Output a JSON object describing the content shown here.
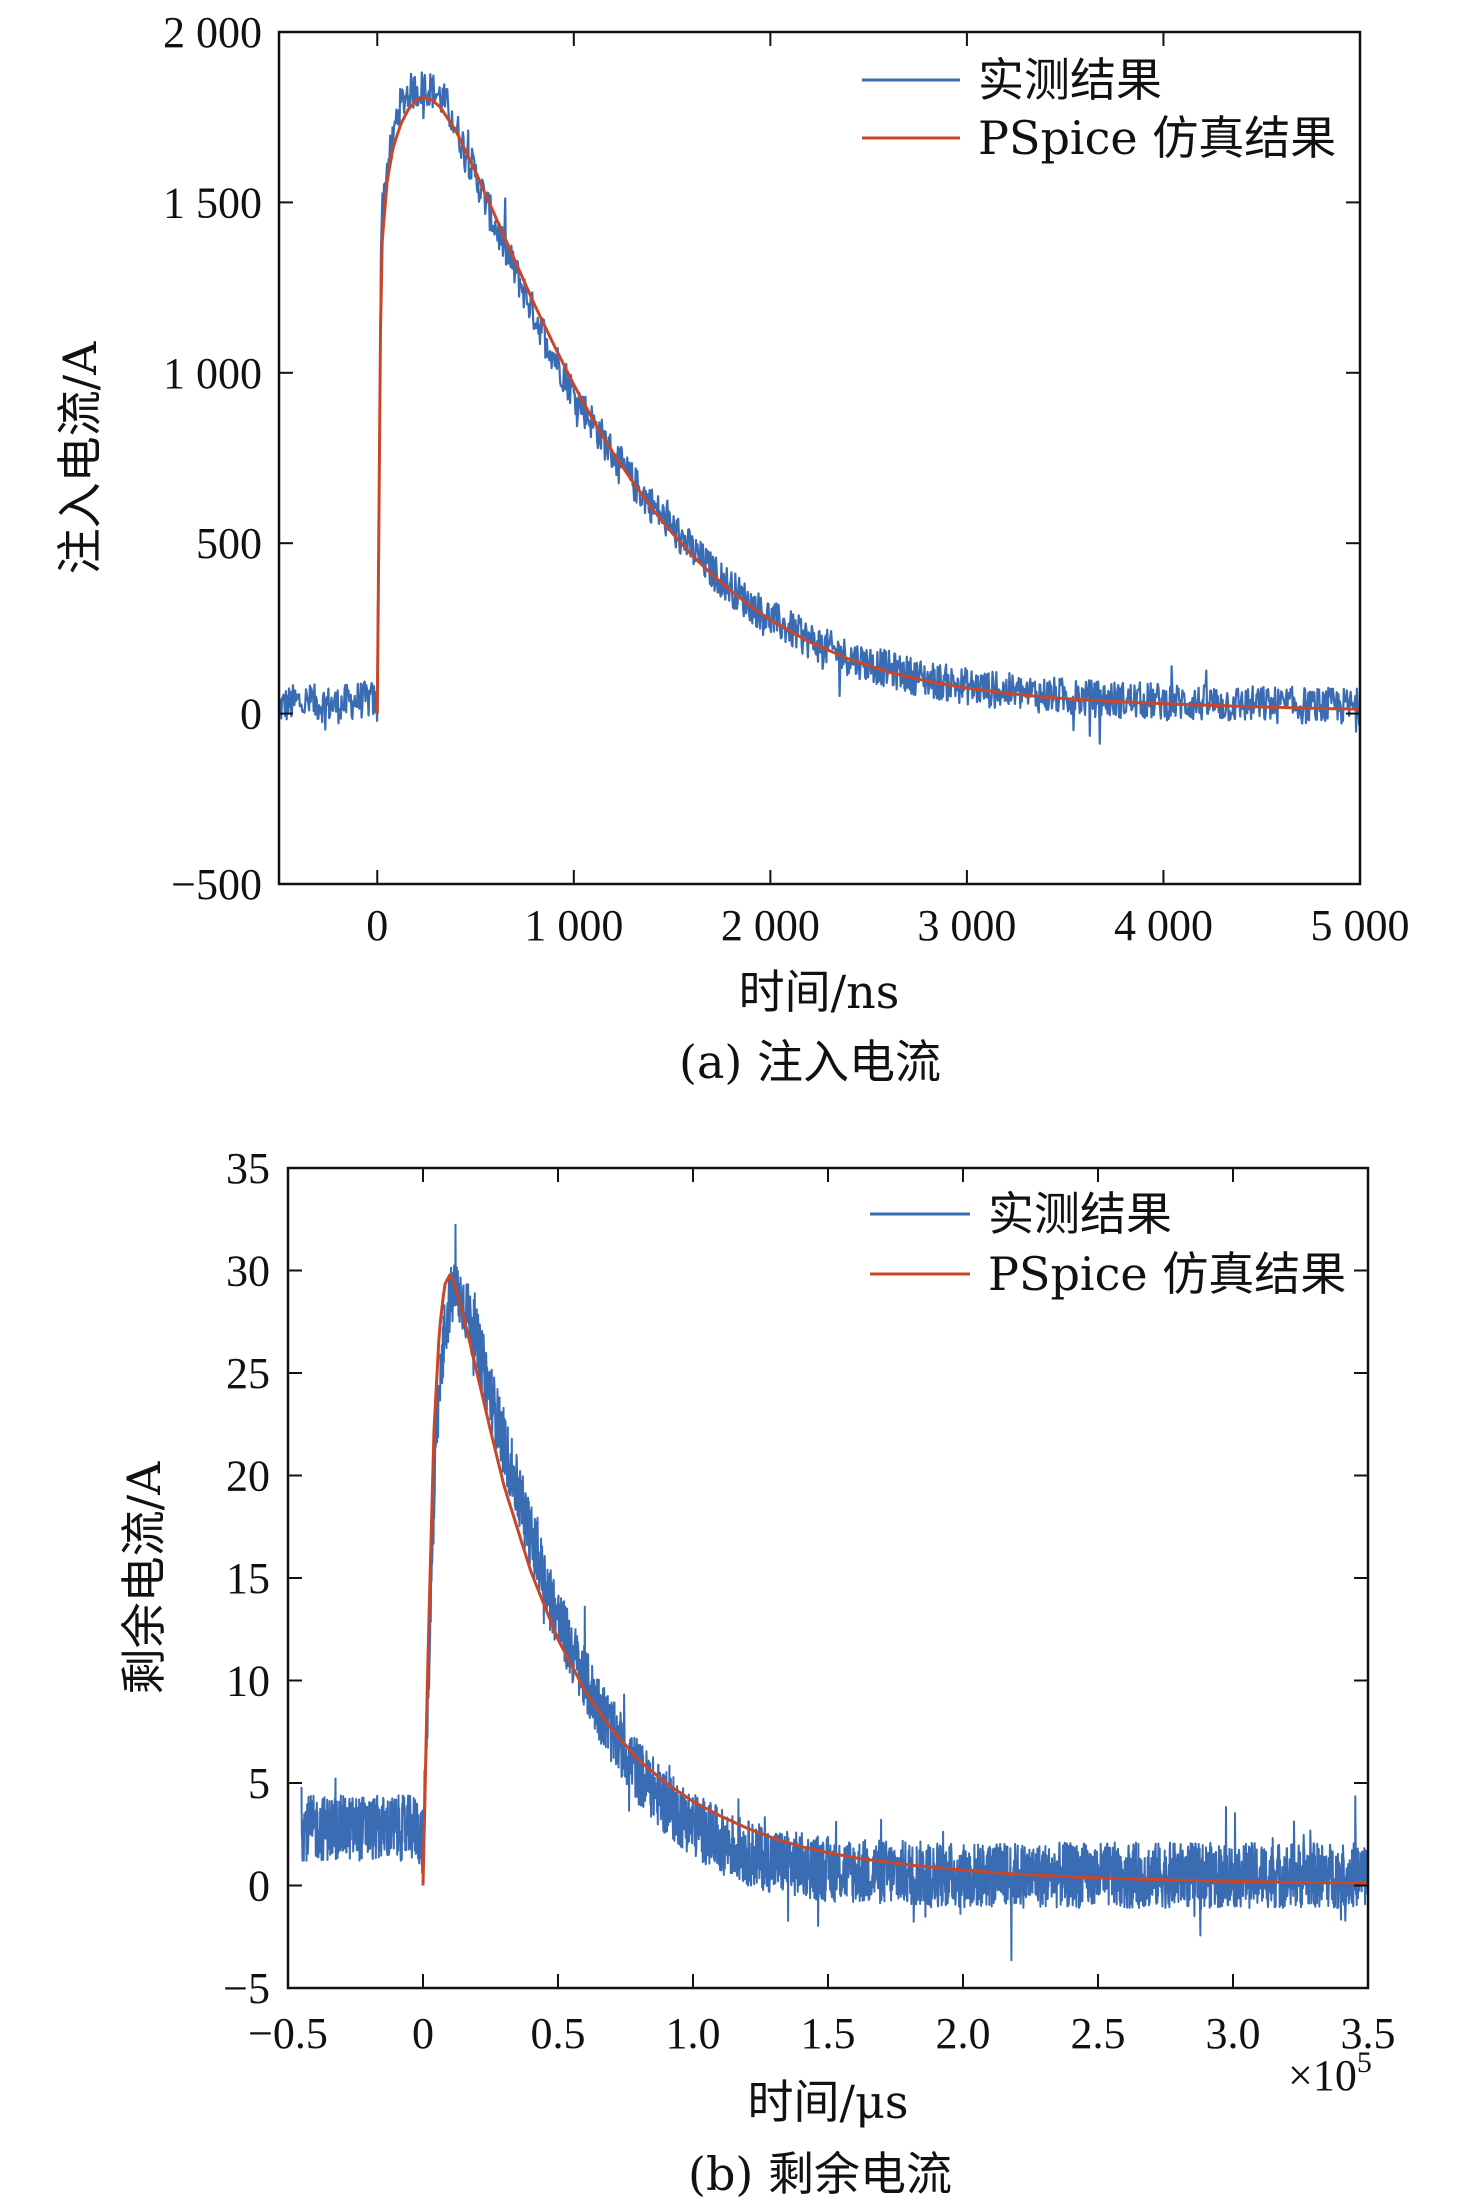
{
  "chart_data": [
    {
      "type": "line",
      "caption": "(a) 注入电流",
      "xlabel": "时间/ns",
      "ylabel": "注入电流/A",
      "xlim": [
        -500,
        5000
      ],
      "ylim": [
        -500,
        2000
      ],
      "x_ticks": [
        0,
        1000,
        2000,
        3000,
        4000,
        5000
      ],
      "x_tick_labels": [
        "0",
        "1 000",
        "2 000",
        "3 000",
        "4 000",
        "5 000"
      ],
      "y_ticks": [
        -500,
        0,
        500,
        1000,
        1500,
        2000
      ],
      "y_tick_labels": [
        "−500",
        "0",
        "500",
        "1 000",
        "1 500",
        "2 000"
      ],
      "grid": false,
      "legend_position": "top-right",
      "series": [
        {
          "name": "实测结果",
          "color": "#3a6cb4",
          "x": [
            -500,
            -400,
            -300,
            -200,
            -100,
            -20,
            0,
            20,
            50,
            80,
            100,
            150,
            200,
            250,
            300,
            350,
            400,
            500,
            600,
            700,
            800,
            900,
            1000,
            1100,
            1200,
            1300,
            1400,
            1500,
            1600,
            1700,
            1800,
            1900,
            2000,
            2200,
            2400,
            2600,
            2800,
            3000,
            3200,
            3400,
            3600,
            3800,
            4000,
            4200,
            4400,
            4600,
            4800,
            5000
          ],
          "values": [
            20,
            35,
            30,
            25,
            40,
            40,
            10,
            1450,
            1600,
            1680,
            1760,
            1820,
            1830,
            1840,
            1820,
            1790,
            1720,
            1580,
            1430,
            1300,
            1170,
            1050,
            940,
            850,
            760,
            680,
            610,
            545,
            480,
            420,
            370,
            320,
            280,
            215,
            165,
            130,
            100,
            80,
            65,
            55,
            45,
            40,
            35,
            30,
            28,
            25,
            22,
            20
          ],
          "noise_amplitude": 55
        },
        {
          "name": "PSpice 仿真结果",
          "color": "#c8472b",
          "x": [
            0,
            20,
            50,
            80,
            120,
            160,
            200,
            240,
            280,
            320,
            400,
            500,
            600,
            700,
            800,
            900,
            1000,
            1100,
            1200,
            1300,
            1400,
            1500,
            1600,
            1700,
            1800,
            1900,
            2000,
            2200,
            2400,
            2600,
            2800,
            3000,
            3200,
            3400,
            3600,
            3800,
            4000,
            4200,
            4400,
            4600,
            4800,
            5000
          ],
          "values": [
            0,
            1350,
            1560,
            1660,
            1730,
            1775,
            1800,
            1808,
            1800,
            1780,
            1710,
            1590,
            1460,
            1330,
            1200,
            1080,
            965,
            860,
            765,
            680,
            600,
            530,
            465,
            410,
            360,
            315,
            275,
            210,
            160,
            122,
            95,
            75,
            60,
            48,
            40,
            34,
            29,
            25,
            21,
            18,
            15,
            13
          ]
        }
      ]
    },
    {
      "type": "line",
      "caption": "(b) 剩余电流",
      "xlabel": "时间/μs",
      "ylabel": "剩余电流/A",
      "xlim": [
        -0.5,
        3.5
      ],
      "ylim": [
        -5,
        35
      ],
      "x_ticks": [
        -0.5,
        0,
        0.5,
        1.0,
        1.5,
        2.0,
        2.5,
        3.0,
        3.5
      ],
      "x_tick_labels": [
        "−0.5",
        "0",
        "0.5",
        "1.0",
        "1.5",
        "2.0",
        "2.5",
        "3.0",
        "3.5"
      ],
      "x_multiplier": "×10",
      "x_multiplier_exponent": "5",
      "y_ticks": [
        -5,
        0,
        5,
        10,
        15,
        20,
        25,
        30,
        35
      ],
      "y_tick_labels": [
        "−5",
        "0",
        "5",
        "10",
        "15",
        "20",
        "25",
        "30",
        "35"
      ],
      "grid": false,
      "legend_position": "top-right",
      "series": [
        {
          "name": "实测结果",
          "color": "#3a6cb4",
          "x": [
            -0.45,
            -0.3,
            -0.15,
            -0.02,
            0,
            0.02,
            0.05,
            0.08,
            0.1,
            0.12,
            0.15,
            0.2,
            0.25,
            0.3,
            0.4,
            0.5,
            0.6,
            0.7,
            0.8,
            0.9,
            1.0,
            1.1,
            1.2,
            1.3,
            1.4,
            1.5,
            1.6,
            1.8,
            2.0,
            2.2,
            2.4,
            2.6,
            2.8,
            3.0,
            3.2,
            3.5
          ],
          "values": [
            2.8,
            2.8,
            2.8,
            2.8,
            2.0,
            10.0,
            22.0,
            27.0,
            28.5,
            29.0,
            28.5,
            26.5,
            24.0,
            21.5,
            17.0,
            13.0,
            10.0,
            7.5,
            5.5,
            4.0,
            3.0,
            2.2,
            1.6,
            1.2,
            1.0,
            0.8,
            0.7,
            0.6,
            0.5,
            0.5,
            0.5,
            0.5,
            0.5,
            0.5,
            0.5,
            0.5
          ],
          "noise_amplitude": 1.6
        },
        {
          "name": "PSpice 仿真结果",
          "color": "#c8472b",
          "x": [
            0,
            0.02,
            0.04,
            0.06,
            0.08,
            0.1,
            0.12,
            0.15,
            0.2,
            0.25,
            0.3,
            0.4,
            0.5,
            0.6,
            0.7,
            0.8,
            0.9,
            1.0,
            1.1,
            1.2,
            1.3,
            1.4,
            1.5,
            1.6,
            1.8,
            2.0,
            2.2,
            2.4,
            2.6,
            2.8,
            3.0,
            3.2,
            3.5
          ],
          "values": [
            0,
            12.0,
            22.0,
            27.0,
            29.3,
            29.8,
            29.2,
            27.8,
            25.0,
            22.2,
            19.5,
            15.3,
            12.0,
            9.5,
            7.6,
            6.1,
            5.0,
            4.1,
            3.4,
            2.8,
            2.3,
            1.9,
            1.6,
            1.35,
            1.0,
            0.75,
            0.55,
            0.42,
            0.33,
            0.26,
            0.2,
            0.16,
            0.12
          ]
        }
      ]
    }
  ]
}
